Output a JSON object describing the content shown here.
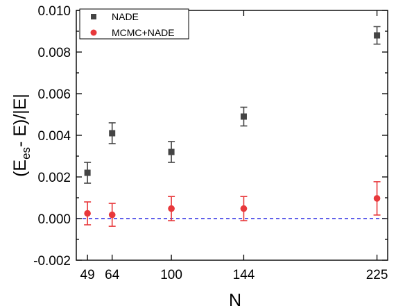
{
  "chart_data": {
    "type": "scatter",
    "x": [
      49,
      64,
      100,
      144,
      225
    ],
    "xticks": [
      "49",
      "64",
      "100",
      "144",
      "225"
    ],
    "xlabel": "N",
    "ylabel": {
      "prefix": "(E",
      "subscript": "es",
      "suffix": "- E)/|E|"
    },
    "ylim": [
      -0.002,
      0.01
    ],
    "yticks": [
      "-0.002",
      "0.000",
      "0.002",
      "0.004",
      "0.006",
      "0.008",
      "0.010"
    ],
    "reference_line": {
      "y": 0,
      "style": "dashed",
      "color": "#0000dd"
    },
    "legend_position": "top-left",
    "series": [
      {
        "name": "NADE",
        "marker": "square",
        "color": "#444444",
        "values": [
          0.0022,
          0.0041,
          0.0032,
          0.0049,
          0.0088
        ],
        "errors": [
          0.0005,
          0.0005,
          0.0005,
          0.00045,
          0.00042
        ]
      },
      {
        "name": "MCMC+NADE",
        "marker": "circle",
        "color": "#e8383b",
        "values": [
          0.00025,
          0.00018,
          0.00048,
          0.00048,
          0.00097
        ],
        "errors": [
          0.00055,
          0.00055,
          0.00058,
          0.00058,
          0.0008
        ]
      }
    ]
  }
}
